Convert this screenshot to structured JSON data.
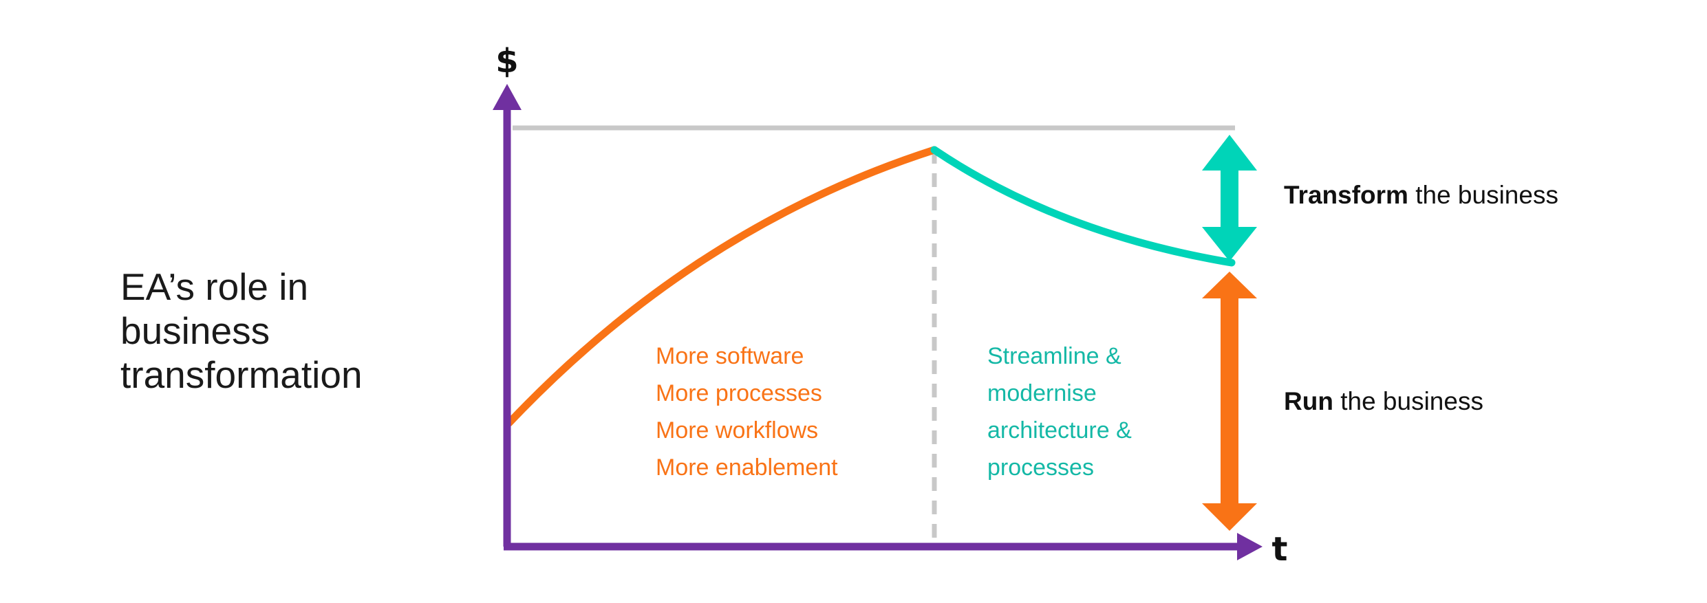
{
  "title_lines": [
    "EA’s role in",
    "business",
    "transformation"
  ],
  "axes": {
    "y_label": "$",
    "x_label": "t"
  },
  "phases": {
    "growth": {
      "lines": [
        "More software",
        "More processes",
        "More workflows",
        "More enablement"
      ]
    },
    "streamline": {
      "lines": [
        "Streamline &",
        "modernise",
        "architecture &",
        "processes"
      ]
    }
  },
  "legend": {
    "transform": {
      "bold": "Transform",
      "rest": " the business"
    },
    "run": {
      "bold": "Run",
      "rest": " the business"
    }
  },
  "colors": {
    "axis": "#7030a0",
    "growth": "#f97316",
    "streamline": "#00d4b8",
    "streamline_text": "#14b8a6",
    "ceiling": "#c8c8c8",
    "divider": "#c8c8c8"
  }
}
